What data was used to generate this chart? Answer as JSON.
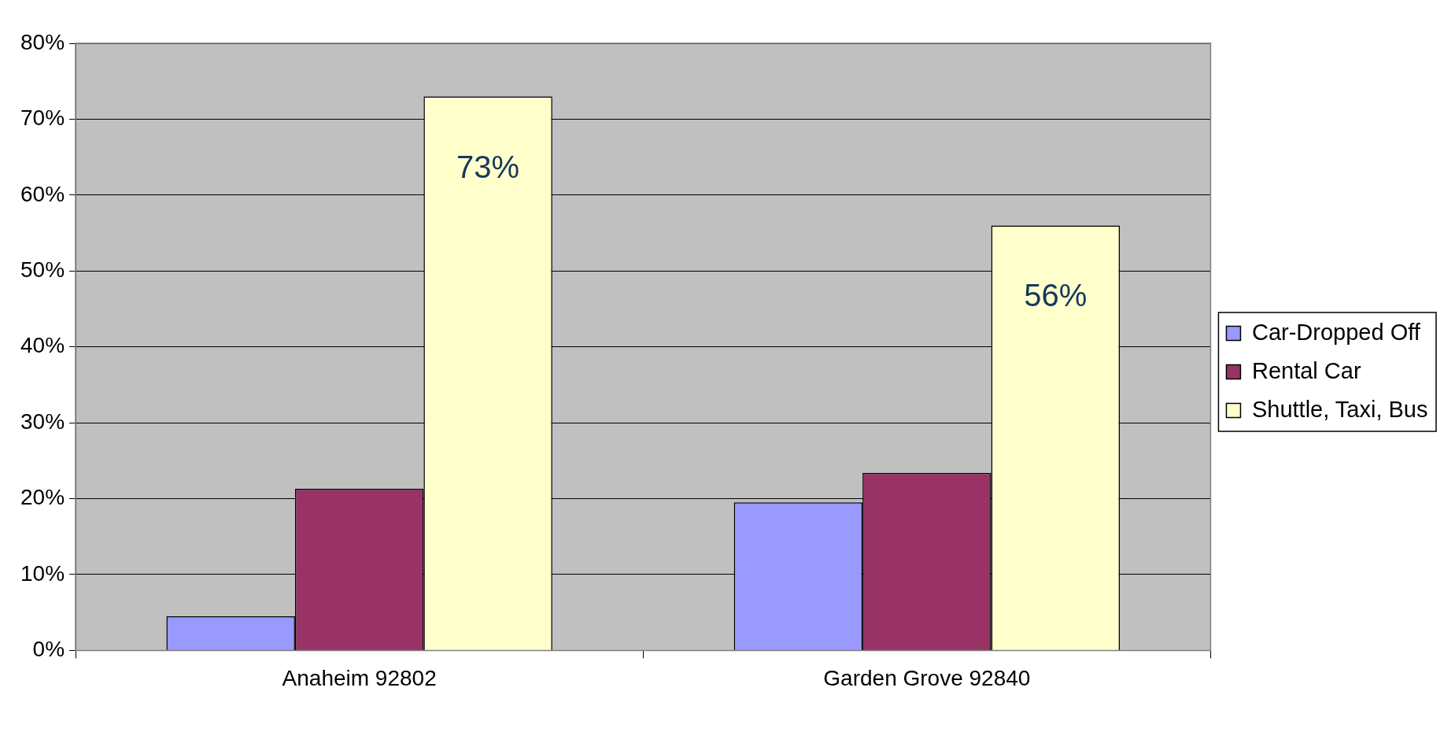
{
  "chart_data": {
    "type": "bar",
    "categories": [
      "Anaheim 92802",
      "Garden Grove 92840"
    ],
    "series": [
      {
        "name": "Car-Dropped Off",
        "color": "#9999ff",
        "values": [
          4.5,
          19.5
        ]
      },
      {
        "name": "Rental Car",
        "color": "#993366",
        "values": [
          21.3,
          23.4
        ]
      },
      {
        "name": "Shuttle, Taxi, Bus",
        "color": "#ffffcc",
        "values": [
          73,
          56
        ],
        "value_labels": [
          "73%",
          "56%"
        ]
      }
    ],
    "ylim": [
      0,
      80
    ],
    "yticks": [
      {
        "value": 0,
        "label": "0%"
      },
      {
        "value": 10,
        "label": "10%"
      },
      {
        "value": 20,
        "label": "20%"
      },
      {
        "value": 30,
        "label": "30%"
      },
      {
        "value": 40,
        "label": "40%"
      },
      {
        "value": 50,
        "label": "50%"
      },
      {
        "value": 60,
        "label": "60%"
      },
      {
        "value": 70,
        "label": "70%"
      },
      {
        "value": 80,
        "label": "80%"
      }
    ],
    "grid": "y",
    "legend": "right"
  }
}
